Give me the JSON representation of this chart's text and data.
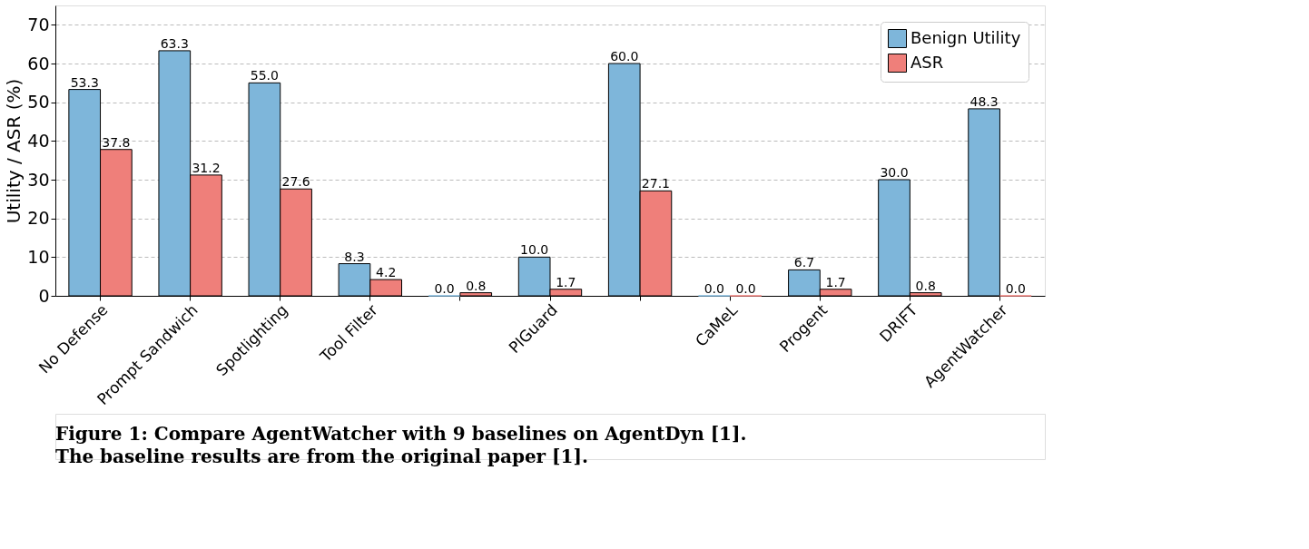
{
  "chart_data": {
    "type": "bar",
    "ylabel": "Utility / ASR (%)",
    "categories": [
      "No Defense",
      "Prompt Sandwich",
      "Spotlighting",
      "Tool Filter",
      null,
      "PIGuard",
      null,
      "CaMeL",
      "Progent",
      "DRIFT",
      "AgentWatcher"
    ],
    "series": [
      {
        "name": "Benign Utility",
        "color": "#7eb6da",
        "values": [
          53.3,
          63.3,
          55.0,
          8.3,
          0.0,
          10.0,
          60.0,
          0.0,
          6.7,
          30.0,
          48.3
        ],
        "value_labels": [
          "53.3",
          "63.3",
          "55.0",
          "8.3",
          "0.0",
          "10.0",
          "60.0",
          "0.0",
          "6.7",
          "30.0",
          "48.3"
        ]
      },
      {
        "name": "ASR",
        "color": "#ef7f7a",
        "values": [
          37.8,
          31.2,
          27.6,
          4.2,
          0.8,
          1.7,
          27.1,
          0.0,
          1.7,
          0.8,
          0.0
        ],
        "value_labels": [
          "37.8",
          "31.2",
          "27.6",
          "4.2",
          "0.8",
          "1.7",
          "27.1",
          "0.0",
          "1.7",
          "0.8",
          "0.0"
        ]
      }
    ],
    "ylim": [
      0,
      75
    ],
    "yticks": [
      0,
      10,
      20,
      30,
      40,
      50,
      60,
      70
    ],
    "grid": "y",
    "line_style": "dashed",
    "legend": "top right",
    "annotations": [
      "Figure 1: Compare AgentWatcher with 9 baselines on AgentDyn [1].",
      "The baseline results are from the original paper [1]."
    ]
  }
}
